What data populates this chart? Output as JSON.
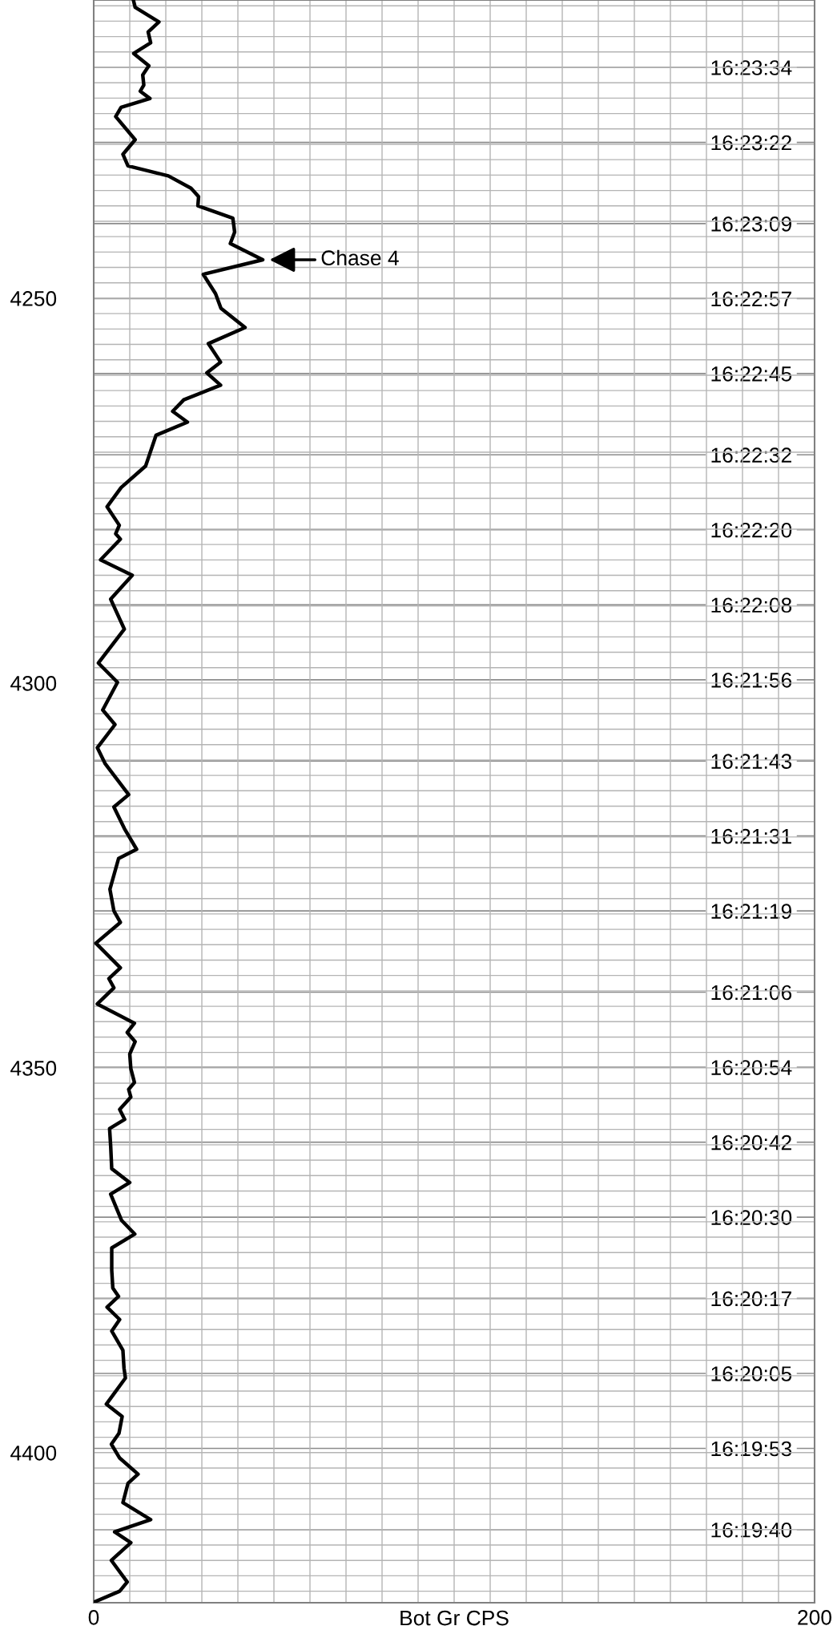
{
  "chart_data": {
    "type": "line",
    "orientation": "horizontal",
    "xlabel": "Bot Gr CPS",
    "x": [
      4211.25,
      4212.2,
      4214.1,
      4215.4,
      4216.8,
      4218.2,
      4219.8,
      4221.0,
      4222.3,
      4223.1,
      4224.05,
      4225.2,
      4226.4,
      4229.4,
      4231.3,
      4232.8,
      4234.1,
      4235.7,
      4236.8,
      4238.0,
      4239.6,
      4241.4,
      4242.9,
      4245.0,
      4246.9,
      4249.4,
      4251.3,
      4253.8,
      4255.9,
      4258.3,
      4259.7,
      4261.3,
      4263.2,
      4264.7,
      4266.1,
      4267.8,
      4271.8,
      4274.6,
      4277.1,
      4279.5,
      4280.6,
      4281.3,
      4284.0,
      4286.0,
      4289.1,
      4293.0,
      4297.4,
      4299.9,
      4303.5,
      4305.4,
      4308.4,
      4310.5,
      4314.5,
      4316.1,
      4318.9,
      4321.6,
      4322.8,
      4326.8,
      4329.6,
      4331.1,
      4333.8,
      4337.0,
      4338.4,
      4339.6,
      4341.7,
      4344.2,
      4345.4,
      4346.6,
      4348.2,
      4350.1,
      4351.9,
      4352.8,
      4353.8,
      4355.4,
      4356.7,
      4357.9,
      4360.1,
      4363.1,
      4364.9,
      4366.4,
      4369.8,
      4371.6,
      4373.4,
      4376.3,
      4378.6,
      4379.7,
      4381.1,
      4382.7,
      4384.2,
      4386.7,
      4389.0,
      4390.3,
      4393.7,
      4395.3,
      4397.5,
      4398.9,
      4400.7,
      4402.8,
      4404.0,
      4406.5,
      4408.7,
      4410.3,
      4411.7,
      4414.0,
      4416.8,
      4418.0,
      4419.4
    ],
    "series": [
      {
        "color": "#000000",
        "values": [
          11.0,
          11.5,
          18.1,
          15.1,
          15.8,
          11.1,
          15.3,
          13.6,
          13.9,
          12.9,
          15.6,
          7.6,
          6.1,
          11.5,
          8.1,
          9.5,
          20.7,
          27.0,
          29.1,
          28.9,
          38.6,
          39.1,
          37.9,
          46.9,
          30.4,
          33.8,
          35.3,
          42.0,
          31.8,
          35.2,
          31.4,
          35.2,
          25.0,
          21.9,
          26.0,
          17.3,
          14.4,
          7.6,
          3.7,
          7.1,
          6.1,
          7.4,
          1.9,
          10.7,
          4.7,
          8.5,
          1.3,
          6.6,
          2.5,
          5.9,
          1.0,
          3.2,
          9.7,
          5.6,
          8.5,
          11.9,
          6.9,
          4.5,
          5.6,
          7.4,
          0.6,
          7.4,
          4.2,
          5.6,
          1.0,
          11.3,
          9.3,
          11.5,
          10.0,
          10.3,
          11.3,
          9.7,
          10.3,
          7.2,
          8.6,
          4.4,
          4.7,
          5.0,
          10.0,
          4.7,
          7.7,
          11.4,
          5.0,
          5.0,
          5.3,
          6.9,
          3.7,
          7.2,
          5.0,
          8.1,
          8.4,
          8.8,
          3.5,
          7.9,
          7.0,
          4.9,
          7.2,
          12.3,
          9.5,
          8.1,
          15.8,
          5.8,
          10.3,
          4.9,
          9.3,
          7.2,
          0.2
        ]
      }
    ],
    "xlim": [
      0,
      200
    ],
    "xticks": [
      0,
      {
        "value": 10,
        "label": null
      },
      {
        "value": 20,
        "label": null
      },
      {
        "value": 30,
        "label": null
      },
      {
        "value": 40,
        "label": null
      },
      {
        "value": 50,
        "label": null
      },
      {
        "value": 60,
        "label": null
      },
      {
        "value": 70,
        "label": null
      },
      {
        "value": 80,
        "label": null
      },
      {
        "value": 90,
        "label": null
      },
      {
        "value": 100,
        "label": null
      },
      {
        "value": 110,
        "label": null
      },
      {
        "value": 120,
        "label": null
      },
      {
        "value": 130,
        "label": null
      },
      {
        "value": 140,
        "label": null
      },
      {
        "value": 150,
        "label": null
      },
      {
        "value": 160,
        "label": null
      },
      {
        "value": 170,
        "label": null
      },
      {
        "value": 180,
        "label": null
      },
      {
        "value": 190,
        "label": null
      },
      200
    ],
    "ylim": [
      4419.5,
      4211.25
    ],
    "yticks": [
      {
        "value": 4212,
        "label": null
      },
      {
        "value": 4214,
        "label": null
      },
      {
        "value": 4216,
        "label": null
      },
      {
        "value": 4218,
        "label": null
      },
      {
        "value": 4220,
        "label": null
      },
      {
        "value": 4222,
        "label": null
      },
      {
        "value": 4224,
        "label": null
      },
      {
        "value": 4226,
        "label": null
      },
      {
        "value": 4228,
        "label": null
      },
      {
        "value": 4230,
        "label": null
      },
      {
        "value": 4232,
        "label": null
      },
      {
        "value": 4234,
        "label": null
      },
      {
        "value": 4236,
        "label": null
      },
      {
        "value": 4238,
        "label": null
      },
      {
        "value": 4240,
        "label": null
      },
      {
        "value": 4242,
        "label": null
      },
      {
        "value": 4244,
        "label": null
      },
      {
        "value": 4246,
        "label": null
      },
      {
        "value": 4248,
        "label": null
      },
      4250,
      {
        "value": 4252,
        "label": null
      },
      {
        "value": 4254,
        "label": null
      },
      {
        "value": 4256,
        "label": null
      },
      {
        "value": 4258,
        "label": null
      },
      {
        "value": 4260,
        "label": null
      },
      {
        "value": 4262,
        "label": null
      },
      {
        "value": 4264,
        "label": null
      },
      {
        "value": 4266,
        "label": null
      },
      {
        "value": 4268,
        "label": null
      },
      {
        "value": 4270,
        "label": null
      },
      {
        "value": 4272,
        "label": null
      },
      {
        "value": 4274,
        "label": null
      },
      {
        "value": 4276,
        "label": null
      },
      {
        "value": 4278,
        "label": null
      },
      {
        "value": 4280,
        "label": null
      },
      {
        "value": 4282,
        "label": null
      },
      {
        "value": 4284,
        "label": null
      },
      {
        "value": 4286,
        "label": null
      },
      {
        "value": 4288,
        "label": null
      },
      {
        "value": 4290,
        "label": null
      },
      {
        "value": 4292,
        "label": null
      },
      {
        "value": 4294,
        "label": null
      },
      {
        "value": 4296,
        "label": null
      },
      {
        "value": 4298,
        "label": null
      },
      4300,
      {
        "value": 4302,
        "label": null
      },
      {
        "value": 4304,
        "label": null
      },
      {
        "value": 4306,
        "label": null
      },
      {
        "value": 4308,
        "label": null
      },
      {
        "value": 4310,
        "label": null
      },
      {
        "value": 4312,
        "label": null
      },
      {
        "value": 4314,
        "label": null
      },
      {
        "value": 4316,
        "label": null
      },
      {
        "value": 4318,
        "label": null
      },
      {
        "value": 4320,
        "label": null
      },
      {
        "value": 4322,
        "label": null
      },
      {
        "value": 4324,
        "label": null
      },
      {
        "value": 4326,
        "label": null
      },
      {
        "value": 4328,
        "label": null
      },
      {
        "value": 4330,
        "label": null
      },
      {
        "value": 4332,
        "label": null
      },
      {
        "value": 4334,
        "label": null
      },
      {
        "value": 4336,
        "label": null
      },
      {
        "value": 4338,
        "label": null
      },
      {
        "value": 4340,
        "label": null
      },
      {
        "value": 4342,
        "label": null
      },
      {
        "value": 4344,
        "label": null
      },
      {
        "value": 4346,
        "label": null
      },
      {
        "value": 4348,
        "label": null
      },
      4350,
      {
        "value": 4352,
        "label": null
      },
      {
        "value": 4354,
        "label": null
      },
      {
        "value": 4356,
        "label": null
      },
      {
        "value": 4358,
        "label": null
      },
      {
        "value": 4360,
        "label": null
      },
      {
        "value": 4362,
        "label": null
      },
      {
        "value": 4364,
        "label": null
      },
      {
        "value": 4366,
        "label": null
      },
      {
        "value": 4368,
        "label": null
      },
      {
        "value": 4370,
        "label": null
      },
      {
        "value": 4372,
        "label": null
      },
      {
        "value": 4374,
        "label": null
      },
      {
        "value": 4376,
        "label": null
      },
      {
        "value": 4378,
        "label": null
      },
      {
        "value": 4380,
        "label": null
      },
      {
        "value": 4382,
        "label": null
      },
      {
        "value": 4384,
        "label": null
      },
      {
        "value": 4386,
        "label": null
      },
      {
        "value": 4388,
        "label": null
      },
      {
        "value": 4390,
        "label": null
      },
      {
        "value": 4392,
        "label": null
      },
      {
        "value": 4394,
        "label": null
      },
      {
        "value": 4396,
        "label": null
      },
      {
        "value": 4398,
        "label": null
      },
      4400,
      {
        "value": 4402,
        "label": null
      },
      {
        "value": 4404,
        "label": null
      },
      {
        "value": 4406,
        "label": null
      },
      {
        "value": 4408,
        "label": null
      },
      {
        "value": 4410,
        "label": null
      },
      {
        "value": 4412,
        "label": null
      },
      {
        "value": 4414,
        "label": null
      },
      {
        "value": 4416,
        "label": null
      },
      {
        "value": 4418,
        "label": null
      }
    ],
    "y2lim": [
      16.324528,
      16.395772
    ],
    "y2ticks": [
      {
        "value": 16.392778,
        "label": "16:23:34"
      },
      {
        "value": 16.389444,
        "label": "16:23:22"
      },
      {
        "value": 16.385833,
        "label": "16:23:09"
      },
      {
        "value": 16.3825,
        "label": "16:22:57"
      },
      {
        "value": 16.379167,
        "label": "16:22:45"
      },
      {
        "value": 16.375556,
        "label": "16:22:32"
      },
      {
        "value": 16.372222,
        "label": "16:22:20"
      },
      {
        "value": 16.368889,
        "label": "16:22:08"
      },
      {
        "value": 16.365556,
        "label": "16:21:56"
      },
      {
        "value": 16.361944,
        "label": "16:21:43"
      },
      {
        "value": 16.358611,
        "label": "16:21:31"
      },
      {
        "value": 16.355278,
        "label": "16:21:19"
      },
      {
        "value": 16.351667,
        "label": "16:21:06"
      },
      {
        "value": 16.348333,
        "label": "16:20:54"
      },
      {
        "value": 16.345,
        "label": "16:20:42"
      },
      {
        "value": 16.341667,
        "label": "16:20:30"
      },
      {
        "value": 16.338056,
        "label": "16:20:17"
      },
      {
        "value": 16.334722,
        "label": "16:20:05"
      },
      {
        "value": 16.331389,
        "label": "16:19:53"
      },
      {
        "value": 16.327778,
        "label": "16:19:40"
      }
    ],
    "grid": true,
    "marker": "none",
    "line_style": "solid",
    "annotations": [
      {
        "text": "Chase 4",
        "x": 46.9,
        "y": 4245.0
      }
    ]
  }
}
